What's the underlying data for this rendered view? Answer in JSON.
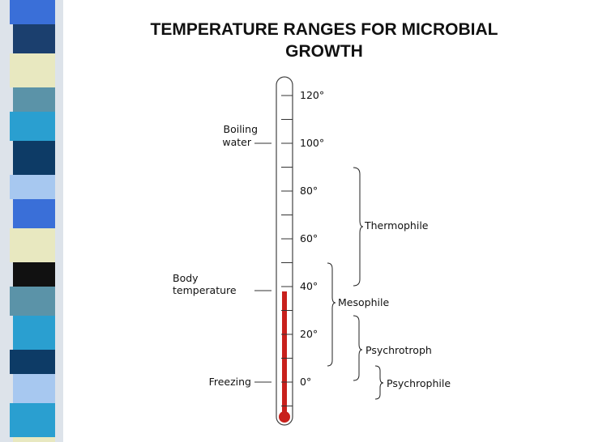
{
  "title": [
    "TEMPERATURE RANGES FOR MICROBIAL",
    "GROWTH"
  ],
  "scale": [
    "120°",
    "100°",
    "80°",
    "60°",
    "40°",
    "20°",
    "0°"
  ],
  "markers": [
    {
      "lines": [
        "Boiling",
        "water"
      ]
    },
    {
      "lines": [
        "Body",
        "temperature"
      ]
    },
    {
      "lines": [
        "Freezing"
      ]
    }
  ],
  "ranges": [
    "Thermophile",
    "Mesophile",
    "Psychrotroph",
    "Psychrophile"
  ]
}
